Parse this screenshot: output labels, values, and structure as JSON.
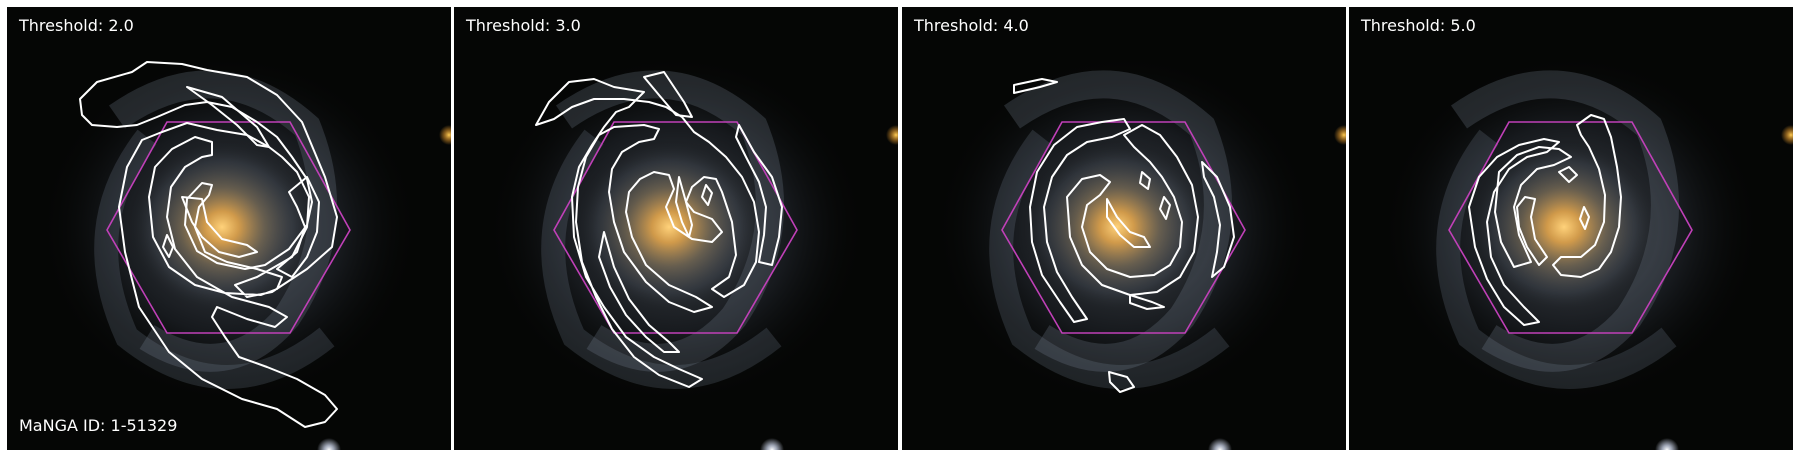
{
  "figure": {
    "galaxy_id_label": "MaNGA ID: 1-51329",
    "panels": [
      {
        "label": "Threshold: 2.0"
      },
      {
        "label": "Threshold: 3.0"
      },
      {
        "label": "Threshold: 4.0"
      },
      {
        "label": "Threshold: 5.0"
      }
    ]
  },
  "colors": {
    "background": "#050605",
    "galaxy_core": "#ffb23a",
    "galaxy_halo": "#aebcd4",
    "contour": "#ffffff",
    "hexagon": "#c040b8"
  }
}
